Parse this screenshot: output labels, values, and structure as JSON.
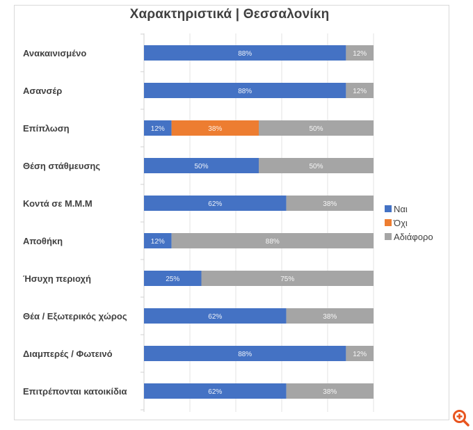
{
  "chart_data": {
    "type": "bar",
    "orientation": "horizontal",
    "stacked": "percent",
    "title": "Χαρακτηριστικά | Θεσσαλονίκη",
    "xlabel": "",
    "ylabel": "",
    "xlim": [
      0,
      100
    ],
    "grid": true,
    "legend_position": "right",
    "categories": [
      "Ανακαινισμένο",
      "Ασανσέρ",
      "Επίπλωση",
      "Θέση στάθμευσης",
      "Κοντά σε Μ.Μ.Μ",
      "Αποθήκη",
      "Ήσυχη περιοχή",
      "Θέα / Εξωτερικός χώρος",
      "Διαμπερές / Φωτεινό",
      "Επιτρέπονται κατοικίδια"
    ],
    "series": [
      {
        "name": "Ναι",
        "color": "#4472c4",
        "values": [
          88,
          88,
          12,
          50,
          62,
          12,
          25,
          62,
          88,
          62
        ]
      },
      {
        "name": "Όχι",
        "color": "#ed7d31",
        "values": [
          0,
          0,
          38,
          0,
          0,
          0,
          0,
          0,
          0,
          0
        ]
      },
      {
        "name": "Αδιάφορο",
        "color": "#a5a5a5",
        "values": [
          12,
          12,
          50,
          50,
          38,
          88,
          75,
          38,
          12,
          38
        ]
      }
    ],
    "value_suffix": "%"
  },
  "ui": {
    "zoom_icon": "zoom-in-icon",
    "accent": "#e8541e"
  }
}
